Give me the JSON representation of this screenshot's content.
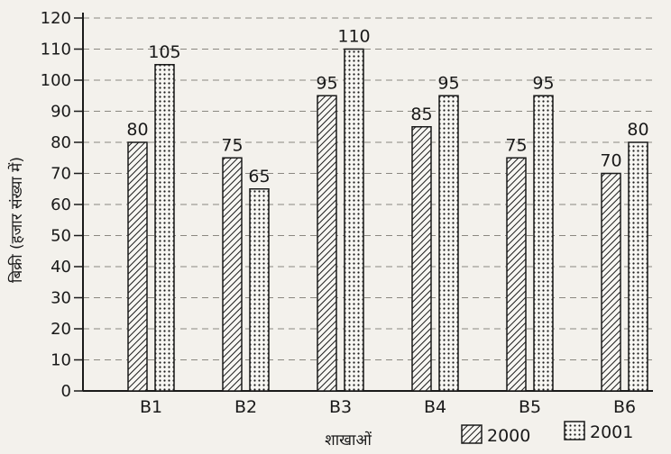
{
  "chart_data": {
    "type": "bar",
    "title": "",
    "xlabel": "शाखाओं",
    "ylabel": "बिक्री (हजार संख्या में)",
    "categories": [
      "B1",
      "B2",
      "B3",
      "B4",
      "B5",
      "B6"
    ],
    "series": [
      {
        "name": "2000",
        "values": [
          80,
          75,
          95,
          85,
          75,
          70
        ],
        "pattern": "diagonal-hatch"
      },
      {
        "name": "2001",
        "values": [
          105,
          65,
          110,
          95,
          95,
          80
        ],
        "pattern": "dots"
      }
    ],
    "ylim": [
      0,
      120
    ],
    "yticks": [
      0,
      10,
      20,
      30,
      40,
      50,
      60,
      70,
      80,
      90,
      100,
      110,
      120
    ],
    "grid": "horizontal dashed",
    "legend_position": "bottom-right",
    "colors": {
      "ink": "#1a1a1a",
      "paper": "#f3f1ec"
    }
  }
}
